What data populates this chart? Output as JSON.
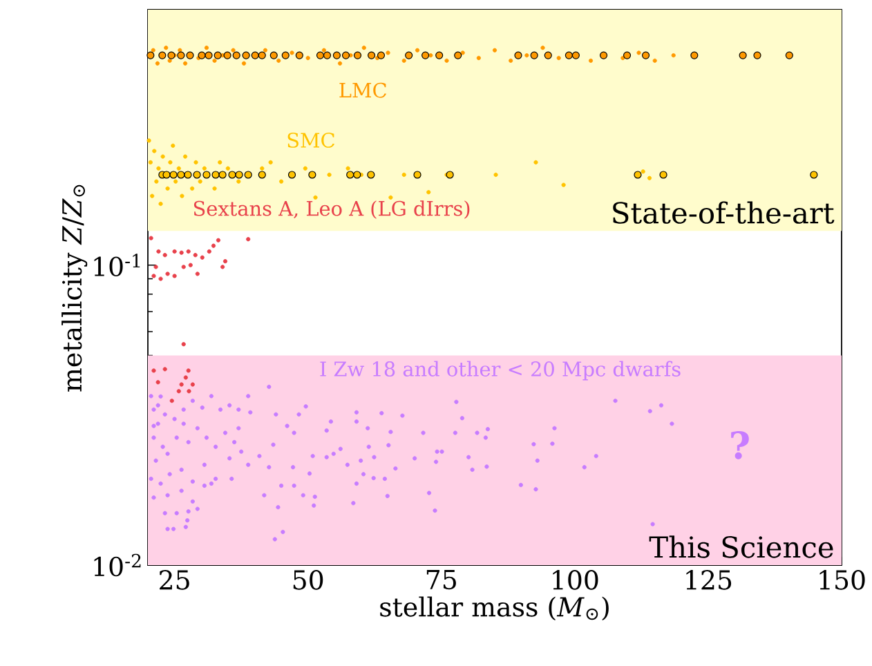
{
  "chart_data": {
    "type": "scatter",
    "xlabel": "stellar mass (*M*$_{⊙}$)",
    "ylabel": "metallicity *Z*/*Z*$_{⊙}$",
    "log": "y",
    "grid": false,
    "xlim": [
      20,
      150
    ],
    "ylim": [
      0.01,
      0.71
    ],
    "xticks": [
      25,
      50,
      75,
      100,
      125,
      150
    ],
    "yticks": [
      {
        "value": 0.01,
        "label": "10$^{-2}$"
      },
      {
        "value": 0.1,
        "label": "10$^{-1}$"
      }
    ],
    "bands": [
      {
        "axis": "y",
        "from": 0.13,
        "to": 0.71,
        "label": "State-of-the-art",
        "color": "#fffccc"
      },
      {
        "axis": "y",
        "from": 0.01,
        "to": 0.05,
        "label": "This Science",
        "color": "#ffd1e6"
      }
    ],
    "annotations": [
      "LMC",
      "SMC",
      "Sextans A, Leo A (LG dIrrs)",
      "I Zw 18 and other < 20 Mpc dwarfs",
      "?"
    ],
    "series": [
      {
        "color": "#ff9900",
        "marker": "circle",
        "x": [
          21,
          21.8,
          23.4,
          24.1,
          25,
          26,
          27,
          29.5,
          31,
          32.5,
          34,
          36,
          38,
          42,
          44.5,
          47,
          50,
          53,
          56,
          58,
          60.5,
          63,
          65,
          68,
          70.5,
          73,
          76,
          79,
          82,
          85,
          88,
          91,
          94,
          97,
          103,
          109,
          112,
          115,
          118.5
        ],
        "values": [
          0.52,
          0.47,
          0.53,
          0.48,
          0.5,
          0.52,
          0.47,
          0.49,
          0.53,
          0.48,
          0.5,
          0.52,
          0.47,
          0.52,
          0.48,
          0.51,
          0.49,
          0.52,
          0.47,
          0.5,
          0.53,
          0.49,
          0.51,
          0.48,
          0.52,
          0.5,
          0.48,
          0.51,
          0.49,
          0.52,
          0.48,
          0.5,
          0.53,
          0.49,
          0.48,
          0.49,
          0.51,
          0.48,
          0.5
        ]
      },
      {
        "color": "#ffc300",
        "marker": "circle",
        "x": [
          20.2,
          20.5,
          20.8,
          21.2,
          21.6,
          22,
          22.4,
          22.8,
          23.7,
          24.2,
          24.7,
          25.2,
          25.8,
          26.4,
          27,
          28.3,
          29,
          29.8,
          30.6,
          32.5,
          33.5,
          35,
          37,
          41.4,
          43,
          45,
          49.5,
          51.4,
          54,
          57.5,
          60,
          65.5,
          68,
          72.6,
          76,
          85.2,
          92.7,
          97.9,
          112.8,
          114
        ],
        "values": [
          0.26,
          0.22,
          0.17,
          0.24,
          0.19,
          0.21,
          0.16,
          0.23,
          0.18,
          0.22,
          0.25,
          0.19,
          0.21,
          0.17,
          0.23,
          0.18,
          0.22,
          0.19,
          0.21,
          0.18,
          0.22,
          0.21,
          0.19,
          0.21,
          0.22,
          0.19,
          0.21,
          0.168,
          0.2,
          0.21,
          0.2,
          0.168,
          0.2,
          0.175,
          0.2,
          0.2,
          0.22,
          0.185,
          0.205,
          0.195
        ]
      },
      {
        "color": "#e8414b",
        "marker": "circle",
        "x": [
          20.6,
          22,
          23.2,
          25,
          26.3,
          27.6,
          28.9,
          30.2,
          32.3,
          33.2,
          34.5,
          34,
          38.8,
          21.1,
          22.4,
          23.7,
          25,
          26.7,
          29.3,
          31.5,
          28,
          21.5,
          26.7,
          21.1,
          23.2,
          27.6,
          27.1,
          28.4,
          26.3,
          21.9,
          24.5,
          25.8,
          27.7
        ],
        "values": [
          0.123,
          0.111,
          0.108,
          0.111,
          0.11,
          0.111,
          0.108,
          0.106,
          0.116,
          0.121,
          0.103,
          0.0986,
          0.122,
          0.092,
          0.09,
          0.0935,
          0.092,
          0.0986,
          0.0935,
          0.111,
          0.1,
          0.0986,
          0.0545,
          0.0445,
          0.045,
          0.0445,
          0.0422,
          0.04,
          0.04,
          0.0407,
          0.0353,
          0.038,
          0.038
        ]
      },
      {
        "color": "#c77cff",
        "marker": "circle",
        "x": [
          42.7,
          49.6,
          44,
          48.3,
          53.5,
          59.1,
          63.8,
          67.7,
          71.6,
          77.8,
          78.9,
          77.6,
          81.7,
          83.7,
          83.3,
          74.2,
          75.1,
          74,
          70,
          80.1,
          80.8,
          83.5,
          66.4,
          62.4,
          65.1,
          65.5,
          61.4,
          59.9,
          60.4,
          59.1,
          58.5,
          62.3,
          64.4,
          64.9,
          72.7,
          73.8,
          89.9,
          92.7,
          92.3,
          93,
          95.8,
          96.2,
          101.8,
          104,
          107.6,
          114.1,
          116.2,
          118.2,
          114.6,
          43.8,
          45.3,
          44.4,
          41.8,
          45,
          47.4,
          49.1,
          51.3,
          51.1,
          50.3,
          47.2,
          42.7,
          40.9,
          47.4,
          50.9,
          56.1,
          54.8,
          53.5,
          57.4,
          54.3,
          59.1,
          61.2,
          46.1,
          43.5,
          20.6,
          22.4,
          21.1,
          23.2,
          21.9,
          25,
          26.7,
          28.4,
          30.2,
          31.9,
          33.6,
          35.3,
          37,
          38.8,
          39.2,
          21.1,
          22.8,
          21.5,
          23.7,
          25.4,
          27.6,
          29.3,
          31,
          32.7,
          34.5,
          36.2,
          37.5,
          38.8,
          20.6,
          22.4,
          24.1,
          26.3,
          28.4,
          30.6,
          32.7,
          35.7,
          21.1,
          23.7,
          26.3,
          28.4,
          30.6,
          31.9,
          23.2,
          25.4,
          27.6,
          29.3,
          23.7,
          24.8,
          27.1,
          27.4,
          37,
          35.3,
          21.1,
          21.9,
          26.7
        ],
        "values": [
          0.0393,
          0.0338,
          0.0318,
          0.0318,
          0.0281,
          0.0323,
          0.0321,
          0.0315,
          0.0276,
          0.035,
          0.0309,
          0.0276,
          0.0276,
          0.0284,
          0.0266,
          0.0239,
          0.0239,
          0.0221,
          0.0227,
          0.0229,
          0.0208,
          0.0213,
          0.021,
          0.0229,
          0.0251,
          0.0278,
          0.0248,
          0.0223,
          0.0201,
          0.0187,
          0.0161,
          0.0195,
          0.0194,
          0.017,
          0.0174,
          0.0152,
          0.0185,
          0.0179,
          0.0253,
          0.0223,
          0.0254,
          0.0286,
          0.0212,
          0.0231,
          0.0353,
          0.0326,
          0.0341,
          0.0296,
          0.0137,
          0.0122,
          0.0129,
          0.0156,
          0.0171,
          0.0184,
          0.0184,
          0.0171,
          0.0169,
          0.0158,
          0.0202,
          0.0212,
          0.0212,
          0.0231,
          0.0276,
          0.0231,
          0.0244,
          0.0235,
          0.0229,
          0.0216,
          0.0301,
          0.0301,
          0.0286,
          0.0291,
          0.0252,
          0.0366,
          0.0365,
          0.033,
          0.0318,
          0.0296,
          0.0307,
          0.033,
          0.0353,
          0.0335,
          0.0366,
          0.033,
          0.0341,
          0.033,
          0.0366,
          0.0323,
          0.0266,
          0.0248,
          0.0223,
          0.0235,
          0.0266,
          0.0257,
          0.0286,
          0.0266,
          0.0248,
          0.0276,
          0.0257,
          0.0239,
          0.0216,
          0.0194,
          0.0187,
          0.0201,
          0.0208,
          0.019,
          0.0216,
          0.0194,
          0.0194,
          0.0168,
          0.0171,
          0.0177,
          0.0163,
          0.0184,
          0.0187,
          0.0149,
          0.0149,
          0.0151,
          0.0154,
          0.0132,
          0.0132,
          0.0134,
          0.0141,
          0.0286,
          0.0227,
          0.0291,
          0.0341,
          0.0296
        ]
      },
      {
        "color": "#ff9900",
        "marker": "circle",
        "x": [
          20.5,
          22.7,
          24.4,
          26.2,
          27.9,
          30.1,
          31.4,
          33.1,
          34.9,
          36.6,
          38.4,
          40.1,
          41.4,
          43.6,
          45.8,
          48.4,
          52.3,
          53.6,
          55.4,
          57.1,
          59.3,
          61.9,
          63.7,
          68.9,
          72,
          74.6,
          78.1,
          89.4,
          92.4,
          95,
          98.9,
          100.2,
          105.4,
          109.8,
          113.3,
          122.4,
          131.5,
          134.2,
          140.2
        ],
        "values": [
          0.5,
          0.5,
          0.5,
          0.5,
          0.5,
          0.5,
          0.5,
          0.5,
          0.5,
          0.5,
          0.5,
          0.5,
          0.5,
          0.5,
          0.5,
          0.5,
          0.5,
          0.5,
          0.5,
          0.5,
          0.5,
          0.5,
          0.5,
          0.5,
          0.5,
          0.5,
          0.5,
          0.5,
          0.5,
          0.5,
          0.5,
          0.5,
          0.5,
          0.5,
          0.5,
          0.5,
          0.5,
          0.5,
          0.5
        ]
      },
      {
        "color": "#ffc300",
        "marker": "circle",
        "x": [
          22.7,
          23.5,
          24.8,
          26.2,
          27.5,
          29.2,
          31,
          32.7,
          34,
          35.8,
          37.1,
          38.8,
          41.4,
          47,
          50.8,
          57.9,
          59.2,
          61.8,
          70.5,
          76.6,
          111.8,
          116.6,
          144.8
        ],
        "values": [
          0.2,
          0.2,
          0.2,
          0.2,
          0.2,
          0.2,
          0.2,
          0.2,
          0.2,
          0.2,
          0.2,
          0.2,
          0.2,
          0.2,
          0.2,
          0.2,
          0.2,
          0.2,
          0.2,
          0.2,
          0.2,
          0.2,
          0.2
        ]
      }
    ]
  }
}
